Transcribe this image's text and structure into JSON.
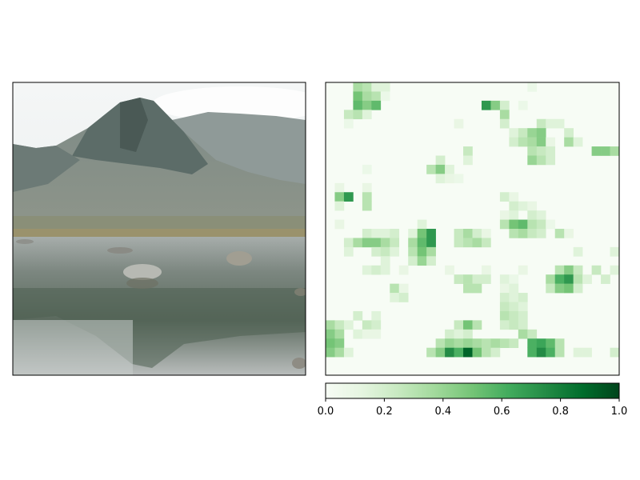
{
  "chart_data": [
    {
      "type": "image",
      "panel": "left",
      "content": "photograph of a mountain with a rocky lake in the foreground"
    },
    {
      "type": "heatmap",
      "panel": "right",
      "colormap": "Greens",
      "grid_size": 32,
      "vmin": 0.0,
      "vmax": 1.0,
      "colorbar": {
        "orientation": "horizontal",
        "ticks": [
          0.0,
          0.2,
          0.4,
          0.6,
          0.8,
          1.0
        ],
        "tick_labels": [
          "0.0",
          "0.2",
          "0.4",
          "0.6",
          "0.8",
          "1.0"
        ]
      },
      "cells": [
        {
          "r": 0,
          "c": 3,
          "v": 0.35
        },
        {
          "r": 0,
          "c": 4,
          "v": 0.3
        },
        {
          "r": 0,
          "c": 5,
          "v": 0.15
        },
        {
          "r": 0,
          "c": 6,
          "v": 0.15
        },
        {
          "r": 0,
          "c": 22,
          "v": 0.08
        },
        {
          "r": 1,
          "c": 3,
          "v": 0.5
        },
        {
          "r": 1,
          "c": 4,
          "v": 0.35
        },
        {
          "r": 1,
          "c": 5,
          "v": 0.3
        },
        {
          "r": 1,
          "c": 6,
          "v": 0.08
        },
        {
          "r": 2,
          "c": 3,
          "v": 0.55
        },
        {
          "r": 2,
          "c": 4,
          "v": 0.45
        },
        {
          "r": 2,
          "c": 5,
          "v": 0.55
        },
        {
          "r": 2,
          "c": 17,
          "v": 0.7
        },
        {
          "r": 2,
          "c": 18,
          "v": 0.45
        },
        {
          "r": 2,
          "c": 19,
          "v": 0.2
        },
        {
          "r": 2,
          "c": 21,
          "v": 0.08
        },
        {
          "r": 3,
          "c": 2,
          "v": 0.25
        },
        {
          "r": 3,
          "c": 3,
          "v": 0.3
        },
        {
          "r": 3,
          "c": 4,
          "v": 0.15
        },
        {
          "r": 3,
          "c": 19,
          "v": 0.35
        },
        {
          "r": 4,
          "c": 2,
          "v": 0.08
        },
        {
          "r": 4,
          "c": 14,
          "v": 0.1
        },
        {
          "r": 4,
          "c": 19,
          "v": 0.2
        },
        {
          "r": 4,
          "c": 23,
          "v": 0.25
        },
        {
          "r": 4,
          "c": 24,
          "v": 0.15
        },
        {
          "r": 4,
          "c": 25,
          "v": 0.15
        },
        {
          "r": 5,
          "c": 20,
          "v": 0.15
        },
        {
          "r": 5,
          "c": 21,
          "v": 0.25
        },
        {
          "r": 5,
          "c": 22,
          "v": 0.4
        },
        {
          "r": 5,
          "c": 23,
          "v": 0.45
        },
        {
          "r": 5,
          "c": 26,
          "v": 0.2
        },
        {
          "r": 6,
          "c": 20,
          "v": 0.2
        },
        {
          "r": 6,
          "c": 21,
          "v": 0.3
        },
        {
          "r": 6,
          "c": 22,
          "v": 0.35
        },
        {
          "r": 6,
          "c": 23,
          "v": 0.45
        },
        {
          "r": 6,
          "c": 24,
          "v": 0.1
        },
        {
          "r": 6,
          "c": 26,
          "v": 0.35
        },
        {
          "r": 6,
          "c": 27,
          "v": 0.15
        },
        {
          "r": 7,
          "c": 15,
          "v": 0.25
        },
        {
          "r": 7,
          "c": 22,
          "v": 0.3
        },
        {
          "r": 7,
          "c": 23,
          "v": 0.25
        },
        {
          "r": 7,
          "c": 24,
          "v": 0.2
        },
        {
          "r": 7,
          "c": 29,
          "v": 0.45
        },
        {
          "r": 7,
          "c": 30,
          "v": 0.45
        },
        {
          "r": 7,
          "c": 31,
          "v": 0.35
        },
        {
          "r": 8,
          "c": 12,
          "v": 0.2
        },
        {
          "r": 8,
          "c": 15,
          "v": 0.15
        },
        {
          "r": 8,
          "c": 22,
          "v": 0.4
        },
        {
          "r": 8,
          "c": 23,
          "v": 0.3
        },
        {
          "r": 8,
          "c": 24,
          "v": 0.2
        },
        {
          "r": 9,
          "c": 11,
          "v": 0.3
        },
        {
          "r": 9,
          "c": 12,
          "v": 0.45
        },
        {
          "r": 9,
          "c": 13,
          "v": 0.15
        },
        {
          "r": 9,
          "c": 4,
          "v": 0.08
        },
        {
          "r": 10,
          "c": 12,
          "v": 0.15
        },
        {
          "r": 10,
          "c": 13,
          "v": 0.1
        },
        {
          "r": 10,
          "c": 14,
          "v": 0.08
        },
        {
          "r": 11,
          "c": 1,
          "v": 0.1
        },
        {
          "r": 11,
          "c": 4,
          "v": 0.1
        },
        {
          "r": 12,
          "c": 1,
          "v": 0.45
        },
        {
          "r": 12,
          "c": 2,
          "v": 0.7
        },
        {
          "r": 12,
          "c": 4,
          "v": 0.3
        },
        {
          "r": 12,
          "c": 19,
          "v": 0.2
        },
        {
          "r": 12,
          "c": 20,
          "v": 0.1
        },
        {
          "r": 13,
          "c": 1,
          "v": 0.15
        },
        {
          "r": 13,
          "c": 4,
          "v": 0.3
        },
        {
          "r": 13,
          "c": 20,
          "v": 0.2
        },
        {
          "r": 13,
          "c": 21,
          "v": 0.15
        },
        {
          "r": 13,
          "c": 22,
          "v": 0.1
        },
        {
          "r": 14,
          "c": 19,
          "v": 0.1
        },
        {
          "r": 14,
          "c": 20,
          "v": 0.15
        },
        {
          "r": 14,
          "c": 22,
          "v": 0.2
        },
        {
          "r": 14,
          "c": 23,
          "v": 0.15
        },
        {
          "r": 15,
          "c": 1,
          "v": 0.1
        },
        {
          "r": 15,
          "c": 10,
          "v": 0.15
        },
        {
          "r": 15,
          "c": 19,
          "v": 0.3
        },
        {
          "r": 15,
          "c": 20,
          "v": 0.5
        },
        {
          "r": 15,
          "c": 21,
          "v": 0.55
        },
        {
          "r": 15,
          "c": 22,
          "v": 0.3
        },
        {
          "r": 15,
          "c": 23,
          "v": 0.25
        },
        {
          "r": 15,
          "c": 24,
          "v": 0.08
        },
        {
          "r": 16,
          "c": 4,
          "v": 0.2
        },
        {
          "r": 16,
          "c": 5,
          "v": 0.15
        },
        {
          "r": 16,
          "c": 6,
          "v": 0.15
        },
        {
          "r": 16,
          "c": 7,
          "v": 0.2
        },
        {
          "r": 16,
          "c": 9,
          "v": 0.15
        },
        {
          "r": 16,
          "c": 10,
          "v": 0.5
        },
        {
          "r": 16,
          "c": 11,
          "v": 0.7
        },
        {
          "r": 16,
          "c": 14,
          "v": 0.25
        },
        {
          "r": 16,
          "c": 15,
          "v": 0.35
        },
        {
          "r": 16,
          "c": 16,
          "v": 0.2
        },
        {
          "r": 16,
          "c": 17,
          "v": 0.1
        },
        {
          "r": 16,
          "c": 20,
          "v": 0.3
        },
        {
          "r": 16,
          "c": 21,
          "v": 0.35
        },
        {
          "r": 16,
          "c": 22,
          "v": 0.25
        },
        {
          "r": 16,
          "c": 23,
          "v": 0.2
        },
        {
          "r": 16,
          "c": 25,
          "v": 0.3
        },
        {
          "r": 16,
          "c": 26,
          "v": 0.1
        },
        {
          "r": 17,
          "c": 2,
          "v": 0.2
        },
        {
          "r": 17,
          "c": 3,
          "v": 0.35
        },
        {
          "r": 17,
          "c": 4,
          "v": 0.45
        },
        {
          "r": 17,
          "c": 5,
          "v": 0.45
        },
        {
          "r": 17,
          "c": 6,
          "v": 0.35
        },
        {
          "r": 17,
          "c": 7,
          "v": 0.25
        },
        {
          "r": 17,
          "c": 9,
          "v": 0.35
        },
        {
          "r": 17,
          "c": 10,
          "v": 0.55
        },
        {
          "r": 17,
          "c": 11,
          "v": 0.7
        },
        {
          "r": 17,
          "c": 14,
          "v": 0.25
        },
        {
          "r": 17,
          "c": 15,
          "v": 0.3
        },
        {
          "r": 17,
          "c": 16,
          "v": 0.35
        },
        {
          "r": 17,
          "c": 17,
          "v": 0.25
        },
        {
          "r": 18,
          "c": 2,
          "v": 0.15
        },
        {
          "r": 18,
          "c": 5,
          "v": 0.2
        },
        {
          "r": 18,
          "c": 6,
          "v": 0.25
        },
        {
          "r": 18,
          "c": 7,
          "v": 0.15
        },
        {
          "r": 18,
          "c": 9,
          "v": 0.3
        },
        {
          "r": 18,
          "c": 10,
          "v": 0.5
        },
        {
          "r": 18,
          "c": 11,
          "v": 0.35
        },
        {
          "r": 18,
          "c": 27,
          "v": 0.15
        },
        {
          "r": 18,
          "c": 31,
          "v": 0.15
        },
        {
          "r": 19,
          "c": 6,
          "v": 0.15
        },
        {
          "r": 19,
          "c": 9,
          "v": 0.2
        },
        {
          "r": 19,
          "c": 10,
          "v": 0.4
        },
        {
          "r": 19,
          "c": 11,
          "v": 0.2
        },
        {
          "r": 20,
          "c": 4,
          "v": 0.15
        },
        {
          "r": 20,
          "c": 5,
          "v": 0.2
        },
        {
          "r": 20,
          "c": 6,
          "v": 0.15
        },
        {
          "r": 20,
          "c": 8,
          "v": 0.1
        },
        {
          "r": 20,
          "c": 13,
          "v": 0.1
        },
        {
          "r": 20,
          "c": 17,
          "v": 0.1
        },
        {
          "r": 20,
          "c": 21,
          "v": 0.1
        },
        {
          "r": 20,
          "c": 25,
          "v": 0.3
        },
        {
          "r": 20,
          "c": 26,
          "v": 0.45
        },
        {
          "r": 20,
          "c": 27,
          "v": 0.25
        },
        {
          "r": 20,
          "c": 29,
          "v": 0.25
        },
        {
          "r": 20,
          "c": 31,
          "v": 0.15
        },
        {
          "r": 21,
          "c": 14,
          "v": 0.25
        },
        {
          "r": 21,
          "c": 15,
          "v": 0.3
        },
        {
          "r": 21,
          "c": 16,
          "v": 0.2
        },
        {
          "r": 21,
          "c": 17,
          "v": 0.2
        },
        {
          "r": 21,
          "c": 19,
          "v": 0.15
        },
        {
          "r": 21,
          "c": 20,
          "v": 0.08
        },
        {
          "r": 21,
          "c": 24,
          "v": 0.35
        },
        {
          "r": 21,
          "c": 25,
          "v": 0.6
        },
        {
          "r": 21,
          "c": 26,
          "v": 0.7
        },
        {
          "r": 21,
          "c": 27,
          "v": 0.3
        },
        {
          "r": 21,
          "c": 28,
          "v": 0.15
        },
        {
          "r": 21,
          "c": 30,
          "v": 0.2
        },
        {
          "r": 22,
          "c": 7,
          "v": 0.3
        },
        {
          "r": 22,
          "c": 8,
          "v": 0.1
        },
        {
          "r": 22,
          "c": 15,
          "v": 0.3
        },
        {
          "r": 22,
          "c": 16,
          "v": 0.3
        },
        {
          "r": 22,
          "c": 19,
          "v": 0.1
        },
        {
          "r": 22,
          "c": 20,
          "v": 0.15
        },
        {
          "r": 22,
          "c": 24,
          "v": 0.25
        },
        {
          "r": 22,
          "c": 25,
          "v": 0.45
        },
        {
          "r": 22,
          "c": 26,
          "v": 0.5
        },
        {
          "r": 22,
          "c": 27,
          "v": 0.2
        },
        {
          "r": 23,
          "c": 7,
          "v": 0.15
        },
        {
          "r": 23,
          "c": 8,
          "v": 0.2
        },
        {
          "r": 23,
          "c": 19,
          "v": 0.2
        },
        {
          "r": 23,
          "c": 20,
          "v": 0.15
        },
        {
          "r": 23,
          "c": 21,
          "v": 0.2
        },
        {
          "r": 24,
          "c": 19,
          "v": 0.25
        },
        {
          "r": 24,
          "c": 20,
          "v": 0.2
        },
        {
          "r": 24,
          "c": 21,
          "v": 0.15
        },
        {
          "r": 25,
          "c": 3,
          "v": 0.2
        },
        {
          "r": 25,
          "c": 5,
          "v": 0.15
        },
        {
          "r": 25,
          "c": 19,
          "v": 0.3
        },
        {
          "r": 25,
          "c": 20,
          "v": 0.25
        },
        {
          "r": 25,
          "c": 21,
          "v": 0.2
        },
        {
          "r": 26,
          "c": 0,
          "v": 0.35
        },
        {
          "r": 26,
          "c": 1,
          "v": 0.25
        },
        {
          "r": 26,
          "c": 2,
          "v": 0.15
        },
        {
          "r": 26,
          "c": 4,
          "v": 0.25
        },
        {
          "r": 26,
          "c": 5,
          "v": 0.2
        },
        {
          "r": 26,
          "c": 14,
          "v": 0.25
        },
        {
          "r": 26,
          "c": 15,
          "v": 0.5
        },
        {
          "r": 26,
          "c": 16,
          "v": 0.3
        },
        {
          "r": 26,
          "c": 19,
          "v": 0.2
        },
        {
          "r": 26,
          "c": 20,
          "v": 0.25
        },
        {
          "r": 26,
          "c": 21,
          "v": 0.2
        },
        {
          "r": 27,
          "c": 0,
          "v": 0.45
        },
        {
          "r": 27,
          "c": 1,
          "v": 0.35
        },
        {
          "r": 27,
          "c": 3,
          "v": 0.15
        },
        {
          "r": 27,
          "c": 4,
          "v": 0.1
        },
        {
          "r": 27,
          "c": 5,
          "v": 0.1
        },
        {
          "r": 27,
          "c": 13,
          "v": 0.2
        },
        {
          "r": 27,
          "c": 14,
          "v": 0.15
        },
        {
          "r": 27,
          "c": 15,
          "v": 0.2
        },
        {
          "r": 27,
          "c": 21,
          "v": 0.35
        },
        {
          "r": 27,
          "c": 22,
          "v": 0.25
        },
        {
          "r": 28,
          "c": 0,
          "v": 0.5
        },
        {
          "r": 28,
          "c": 1,
          "v": 0.45
        },
        {
          "r": 28,
          "c": 12,
          "v": 0.3
        },
        {
          "r": 28,
          "c": 13,
          "v": 0.4
        },
        {
          "r": 28,
          "c": 14,
          "v": 0.35
        },
        {
          "r": 28,
          "c": 15,
          "v": 0.4
        },
        {
          "r": 28,
          "c": 16,
          "v": 0.35
        },
        {
          "r": 28,
          "c": 17,
          "v": 0.3
        },
        {
          "r": 28,
          "c": 18,
          "v": 0.35
        },
        {
          "r": 28,
          "c": 19,
          "v": 0.3
        },
        {
          "r": 28,
          "c": 20,
          "v": 0.25
        },
        {
          "r": 28,
          "c": 22,
          "v": 0.6
        },
        {
          "r": 28,
          "c": 23,
          "v": 0.65
        },
        {
          "r": 28,
          "c": 24,
          "v": 0.55
        },
        {
          "r": 28,
          "c": 25,
          "v": 0.3
        },
        {
          "r": 29,
          "c": 0,
          "v": 0.45
        },
        {
          "r": 29,
          "c": 1,
          "v": 0.35
        },
        {
          "r": 29,
          "c": 2,
          "v": 0.15
        },
        {
          "r": 29,
          "c": 11,
          "v": 0.3
        },
        {
          "r": 29,
          "c": 12,
          "v": 0.45
        },
        {
          "r": 29,
          "c": 13,
          "v": 0.75
        },
        {
          "r": 29,
          "c": 14,
          "v": 0.6
        },
        {
          "r": 29,
          "c": 15,
          "v": 0.9
        },
        {
          "r": 29,
          "c": 16,
          "v": 0.5
        },
        {
          "r": 29,
          "c": 17,
          "v": 0.3
        },
        {
          "r": 29,
          "c": 18,
          "v": 0.2
        },
        {
          "r": 29,
          "c": 22,
          "v": 0.6
        },
        {
          "r": 29,
          "c": 23,
          "v": 0.75
        },
        {
          "r": 29,
          "c": 24,
          "v": 0.6
        },
        {
          "r": 29,
          "c": 25,
          "v": 0.3
        },
        {
          "r": 29,
          "c": 27,
          "v": 0.15
        },
        {
          "r": 29,
          "c": 28,
          "v": 0.15
        },
        {
          "r": 29,
          "c": 31,
          "v": 0.2
        }
      ]
    }
  ]
}
